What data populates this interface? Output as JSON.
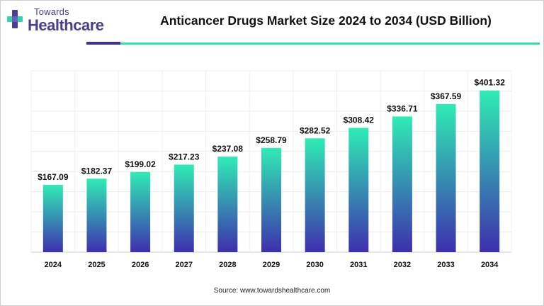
{
  "brand": {
    "line1": "Towards",
    "line2": "Healthcare"
  },
  "colors": {
    "title_rule_dark": "#3b2fa8",
    "title_rule_teal": "#2ee3b0",
    "bar_top": "#2fecb4",
    "bar_bottom": "#3d2fae",
    "logo_purple": "#4b3e8e",
    "logo_teal": "#2ed3b0"
  },
  "chart_data": {
    "type": "bar",
    "title": "Anticancer Drugs Market Size 2024 to 2034 (USD Billion)",
    "categories": [
      "2024",
      "2025",
      "2026",
      "2027",
      "2028",
      "2029",
      "2030",
      "2031",
      "2032",
      "2033",
      "2034"
    ],
    "values": [
      167.09,
      182.37,
      199.02,
      217.23,
      237.08,
      258.79,
      282.52,
      308.42,
      336.71,
      367.59,
      401.32
    ],
    "data_labels": [
      "$167.09",
      "$182.37",
      "$199.02",
      "$217.23",
      "$237.08",
      "$258.79",
      "$282.52",
      "$308.42",
      "$336.71",
      "$367.59",
      "$401.32"
    ],
    "ylim": [
      0,
      450
    ],
    "grid": true,
    "bar_fill": "vertical gradient teal to indigo",
    "source": "Source: www.towardshealthcare.com"
  }
}
